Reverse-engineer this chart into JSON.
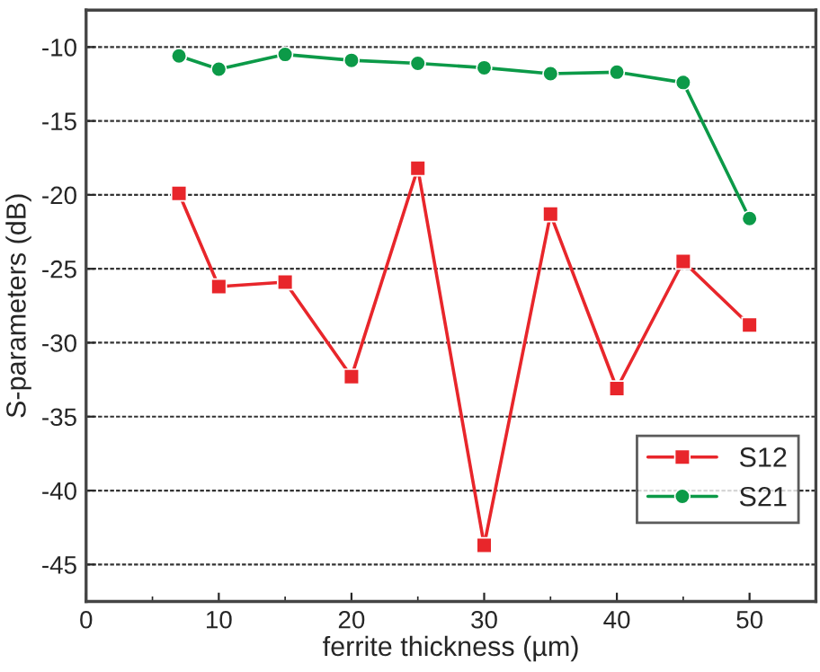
{
  "chart_data": {
    "type": "line",
    "xlabel": "ferrite thickness (µm)",
    "ylabel": "S-parameters (dB)",
    "xlim": [
      0,
      55
    ],
    "xticks": [
      0,
      10,
      20,
      30,
      40,
      50
    ],
    "ylim": [
      -47.5,
      -7.5
    ],
    "yticks": [
      -45,
      -40,
      -35,
      -30,
      -25,
      -20,
      -15,
      -10
    ],
    "grid": "y",
    "legend": "bottom right",
    "line_style": "solid",
    "series": [
      {
        "name": "S12",
        "color": "#e8262b",
        "marker": "square",
        "x": [
          7,
          10,
          15,
          20,
          25,
          30,
          35,
          40,
          45,
          50
        ],
        "values": [
          -19.9,
          -26.2,
          -25.9,
          -32.3,
          -18.2,
          -43.7,
          -21.3,
          -33.1,
          -24.5,
          -28.8
        ]
      },
      {
        "name": "S21",
        "color": "#0c9a48",
        "marker": "circle",
        "x": [
          7,
          10,
          15,
          20,
          25,
          30,
          35,
          40,
          45,
          50
        ],
        "values": [
          -10.6,
          -11.5,
          -10.5,
          -10.9,
          -11.1,
          -11.4,
          -11.8,
          -11.7,
          -12.4,
          -21.6
        ]
      }
    ]
  }
}
